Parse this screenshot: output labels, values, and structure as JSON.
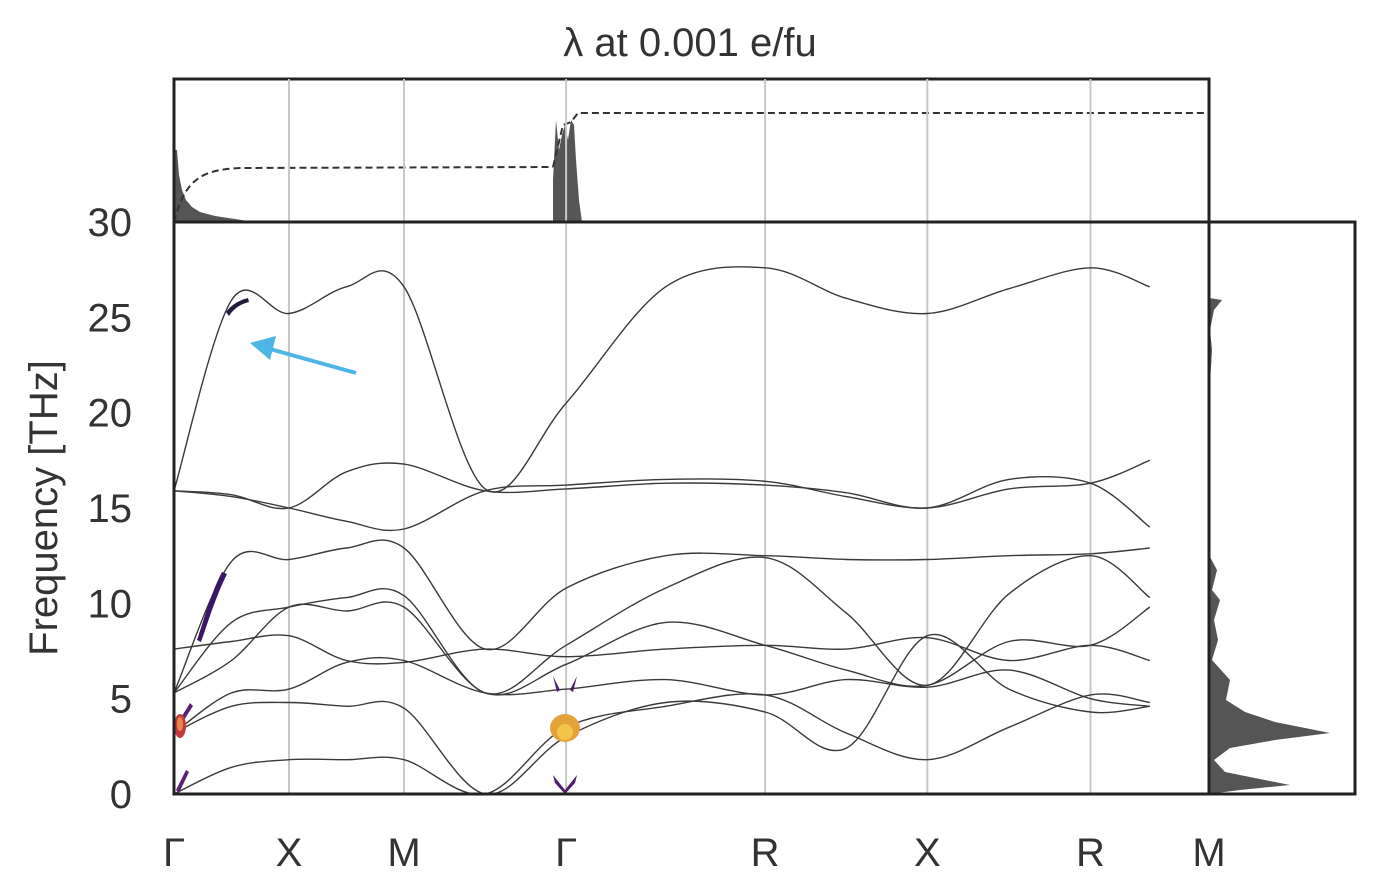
{
  "chart_data": {
    "type": "line",
    "title": "λ at 0.001 e/fu",
    "xlabel": "",
    "ylabel": "Frequency [THz]",
    "ylim": [
      0,
      30
    ],
    "yticks": [
      0,
      5,
      10,
      15,
      20,
      25,
      30
    ],
    "grid": "vertical lines at high-symmetry points",
    "legend": "none",
    "kpath": [
      {
        "label": "Γ",
        "x": 0
      },
      {
        "label": "X",
        "x": 1
      },
      {
        "label": "M",
        "x": 2
      },
      {
        "label": "Γ",
        "x": 3.41
      },
      {
        "label": "R",
        "x": 5.14
      },
      {
        "label": "X",
        "x": 6.55
      },
      {
        "label": "R",
        "x": 7.97
      },
      {
        "label": "M",
        "x": 9.0
      }
    ],
    "series": [
      {
        "values": [
          15.9,
          25.9,
          25.2,
          26.6,
          26.6,
          16.0,
          20.5,
          26.6,
          27.6,
          26.0,
          25.2,
          26.5,
          27.6,
          26.6
        ]
      },
      {
        "values": [
          15.9,
          15.6,
          15.0,
          14.3,
          13.9,
          15.9,
          16.2,
          16.5,
          16.4,
          15.6,
          15.0,
          16.0,
          16.3,
          17.5
        ]
      },
      {
        "values": [
          15.9,
          15.7,
          15.0,
          16.9,
          17.3,
          15.9,
          16.0,
          16.3,
          16.2,
          15.8,
          15.0,
          16.5,
          16.3,
          14.0
        ]
      },
      {
        "values": [
          5.3,
          12.2,
          12.3,
          12.9,
          12.9,
          7.6,
          10.8,
          12.5,
          12.5,
          12.3,
          12.3,
          12.5,
          12.6,
          12.9
        ]
      },
      {
        "values": [
          5.3,
          9.0,
          9.8,
          10.3,
          10.4,
          5.3,
          7.8,
          10.8,
          12.4,
          9.5,
          5.7,
          10.5,
          12.5,
          10.3
        ]
      },
      {
        "values": [
          5.3,
          7.0,
          9.8,
          9.6,
          9.8,
          5.3,
          6.8,
          9.0,
          7.8,
          6.5,
          5.7,
          8.0,
          7.8,
          9.8
        ]
      },
      {
        "values": [
          7.6,
          8.0,
          8.3,
          7.0,
          6.9,
          7.6,
          7.2,
          7.6,
          7.8,
          7.6,
          8.2,
          7.0,
          7.8,
          7.0
        ]
      },
      {
        "values": [
          3.2,
          5.3,
          5.5,
          6.9,
          7.0,
          5.3,
          5.5,
          6.0,
          5.2,
          6.0,
          5.6,
          6.5,
          5.0,
          4.6
        ]
      },
      {
        "values": [
          3.2,
          4.6,
          4.8,
          4.6,
          4.5,
          0.0,
          3.0,
          4.8,
          4.3,
          2.4,
          8.3,
          5.5,
          4.3,
          4.6
        ]
      },
      {
        "values": [
          0.0,
          1.4,
          1.8,
          1.8,
          1.8,
          0.0,
          3.5,
          4.6,
          5.2,
          3.2,
          1.8,
          3.5,
          5.2,
          4.8
        ]
      }
    ]
  }
}
